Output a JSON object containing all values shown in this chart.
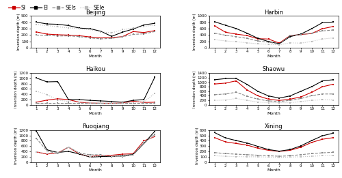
{
  "months": [
    1,
    2,
    3,
    4,
    5,
    6,
    7,
    8,
    9,
    10,
    11,
    12
  ],
  "stations": {
    "Beijing": {
      "SI": [
        250,
        215,
        205,
        200,
        190,
        170,
        155,
        160,
        175,
        255,
        240,
        270
      ],
      "EI": [
        405,
        375,
        370,
        350,
        310,
        300,
        260,
        180,
        245,
        295,
        360,
        385
      ],
      "SEIs": [
        200,
        195,
        185,
        188,
        175,
        155,
        140,
        148,
        173,
        210,
        220,
        255
      ],
      "SEIe": [
        365,
        350,
        330,
        315,
        300,
        285,
        250,
        235,
        285,
        310,
        335,
        360
      ],
      "ylim": [
        0,
        500
      ],
      "yticks": [
        0,
        100,
        200,
        300,
        400,
        500
      ]
    },
    "Harbin": {
      "SI": [
        690,
        490,
        430,
        385,
        285,
        275,
        145,
        385,
        415,
        450,
        600,
        670
      ],
      "EI": [
        820,
        710,
        605,
        460,
        300,
        195,
        125,
        350,
        430,
        600,
        790,
        810
      ],
      "SEIs": [
        460,
        395,
        350,
        295,
        215,
        175,
        115,
        385,
        415,
        460,
        530,
        560
      ],
      "SEIe": [
        255,
        215,
        190,
        155,
        125,
        105,
        95,
        155,
        145,
        200,
        275,
        310
      ],
      "ylim": [
        0,
        1000
      ],
      "yticks": [
        0,
        200,
        400,
        600,
        800,
        1000
      ]
    },
    "Haikou": {
      "SI": [
        100,
        180,
        230,
        200,
        100,
        70,
        60,
        60,
        70,
        140,
        90,
        100
      ],
      "EI": [
        1020,
        870,
        880,
        200,
        200,
        170,
        150,
        130,
        100,
        170,
        200,
        1040
      ],
      "SEIs": [
        60,
        60,
        60,
        60,
        60,
        60,
        60,
        60,
        60,
        60,
        60,
        60
      ],
      "SEIe": [
        520,
        390,
        180,
        130,
        100,
        80,
        70,
        70,
        70,
        100,
        120,
        430
      ],
      "ylim": [
        0,
        1200
      ],
      "yticks": [
        0,
        200,
        400,
        600,
        800,
        1000,
        1200
      ]
    },
    "Shaowu": {
      "SI": [
        920,
        960,
        1060,
        660,
        400,
        250,
        195,
        250,
        350,
        555,
        800,
        910
      ],
      "EI": [
        1110,
        1160,
        1165,
        905,
        600,
        395,
        300,
        395,
        600,
        800,
        1055,
        1110
      ],
      "SEIs": [
        450,
        480,
        555,
        385,
        250,
        175,
        148,
        198,
        280,
        405,
        480,
        480
      ],
      "SEIe": [
        195,
        215,
        280,
        198,
        128,
        95,
        95,
        95,
        148,
        198,
        228,
        215
      ],
      "ylim": [
        0,
        1400
      ],
      "yticks": [
        0,
        200,
        400,
        600,
        800,
        1000,
        1200,
        1400
      ]
    },
    "Ruoqiang": {
      "SI": [
        380,
        300,
        340,
        560,
        300,
        200,
        255,
        255,
        295,
        310,
        800,
        960
      ],
      "EI": [
        1180,
        460,
        360,
        400,
        305,
        185,
        205,
        205,
        235,
        285,
        700,
        1160
      ],
      "SEIs": [
        900,
        420,
        315,
        565,
        340,
        270,
        275,
        205,
        205,
        265,
        700,
        1055
      ],
      "SEIe": [
        385,
        315,
        355,
        555,
        325,
        195,
        235,
        225,
        215,
        275,
        760,
        990
      ],
      "ylim": [
        0,
        1200
      ],
      "yticks": [
        0,
        200,
        400,
        600,
        800,
        1000,
        1200
      ]
    },
    "Xining": {
      "SI": [
        460,
        380,
        350,
        320,
        260,
        220,
        200,
        220,
        280,
        370,
        430,
        460
      ],
      "EI": [
        555,
        455,
        405,
        360,
        295,
        235,
        205,
        235,
        305,
        405,
        495,
        545
      ],
      "SEIs": [
        178,
        158,
        148,
        138,
        128,
        118,
        108,
        118,
        138,
        158,
        173,
        183
      ],
      "SEIe": [
        118,
        108,
        103,
        98,
        98,
        93,
        88,
        93,
        98,
        108,
        118,
        123
      ],
      "ylim": [
        0,
        600
      ],
      "yticks": [
        0,
        100,
        200,
        300,
        400,
        500,
        600
      ]
    }
  },
  "colors": {
    "SI": "#cc0000",
    "EI": "#000000",
    "SEIs": "#888888",
    "SEIe": "#bbbbbb"
  },
  "linestyles": {
    "SI": "-",
    "EI": "-",
    "SEIs": "--",
    "SEIe": ":"
  },
  "layout": [
    [
      "Beijing",
      "Harbin"
    ],
    [
      "Haikou",
      "Shaowu"
    ],
    [
      "Ruoqiang",
      "Xining"
    ]
  ],
  "series": [
    "SI",
    "EI",
    "SEIs",
    "SEIe"
  ]
}
